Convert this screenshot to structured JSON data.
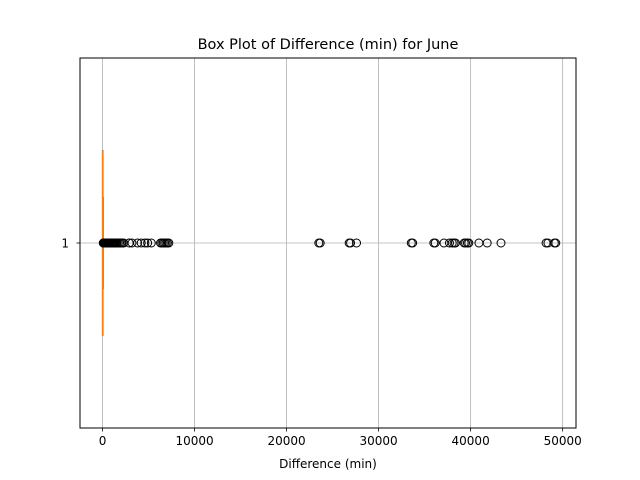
{
  "chart_data": {
    "type": "box",
    "orientation": "horizontal",
    "title": "Box Plot of Difference (min) for June",
    "xlabel": "Difference (min)",
    "ylabel": "",
    "xlim": [
      -2450,
      51450
    ],
    "ylim": [
      0.5,
      1.5
    ],
    "xticks": [
      0,
      10000,
      20000,
      30000,
      40000,
      50000
    ],
    "yticks": [
      1
    ],
    "grid": true,
    "box": {
      "position": 1,
      "whisker_low": 0,
      "q1": 2,
      "median": 8,
      "q3": 30,
      "whisker_high": 70
    },
    "outliers": [
      80,
      100,
      120,
      150,
      180,
      200,
      230,
      260,
      300,
      340,
      380,
      420,
      470,
      520,
      580,
      640,
      700,
      780,
      860,
      950,
      1050,
      1150,
      1250,
      1350,
      1450,
      1550,
      1700,
      1850,
      2000,
      2150,
      2300,
      2900,
      3200,
      3800,
      4200,
      4600,
      4900,
      5300,
      6300,
      6450,
      6600,
      6750,
      6900,
      7050,
      7200,
      23500,
      23650,
      26800,
      26950,
      27600,
      33550,
      33700,
      36000,
      36150,
      37100,
      37700,
      38000,
      38200,
      38350,
      39300,
      39450,
      39650,
      39800,
      40900,
      41800,
      43300,
      48200,
      48400,
      49100,
      49250
    ],
    "colors": {
      "box": "#1f77b4",
      "median": "#ff7f0e",
      "outlier_edge": "#000000",
      "grid": "#b0b0b0"
    }
  }
}
